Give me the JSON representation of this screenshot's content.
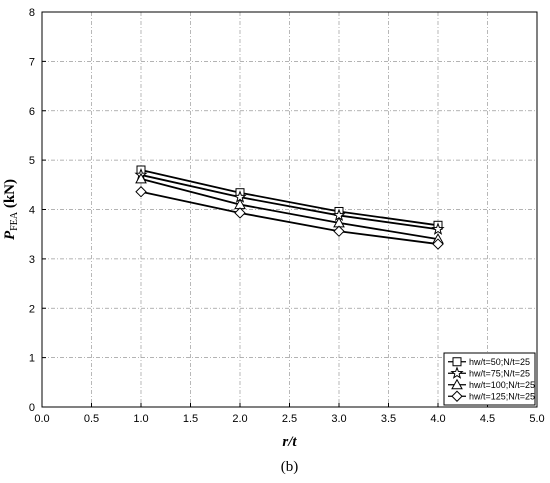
{
  "chart_data": {
    "type": "line",
    "xlabel": "r/t",
    "ylabel_main": "P",
    "ylabel_sub": "FEA",
    "ylabel_unit": " (kN)",
    "caption": "(b)",
    "xlim": [
      0,
      5
    ],
    "ylim": [
      0,
      8
    ],
    "xticks": [
      "0.0",
      "0.5",
      "1.0",
      "1.5",
      "2.0",
      "2.5",
      "3.0",
      "3.5",
      "4.0",
      "4.5",
      "5.0"
    ],
    "yticks": [
      "0",
      "1",
      "2",
      "3",
      "4",
      "5",
      "6",
      "7",
      "8"
    ],
    "grid": true,
    "legend_position": "bottom-right",
    "x": [
      1.0,
      2.0,
      3.0,
      4.0
    ],
    "series": [
      {
        "name": "hw/t=50;N/t=25",
        "marker": "square",
        "values": [
          4.8,
          4.34,
          3.96,
          3.68
        ]
      },
      {
        "name": "hw/t=75;N/t=25",
        "marker": "star",
        "values": [
          4.7,
          4.25,
          3.88,
          3.6
        ]
      },
      {
        "name": "hw/t=100;N/t=25",
        "marker": "triangle",
        "values": [
          4.62,
          4.1,
          3.73,
          3.4
        ]
      },
      {
        "name": "hw/t=125;N/t=25",
        "marker": "diamond",
        "values": [
          4.36,
          3.93,
          3.56,
          3.3
        ]
      }
    ]
  }
}
